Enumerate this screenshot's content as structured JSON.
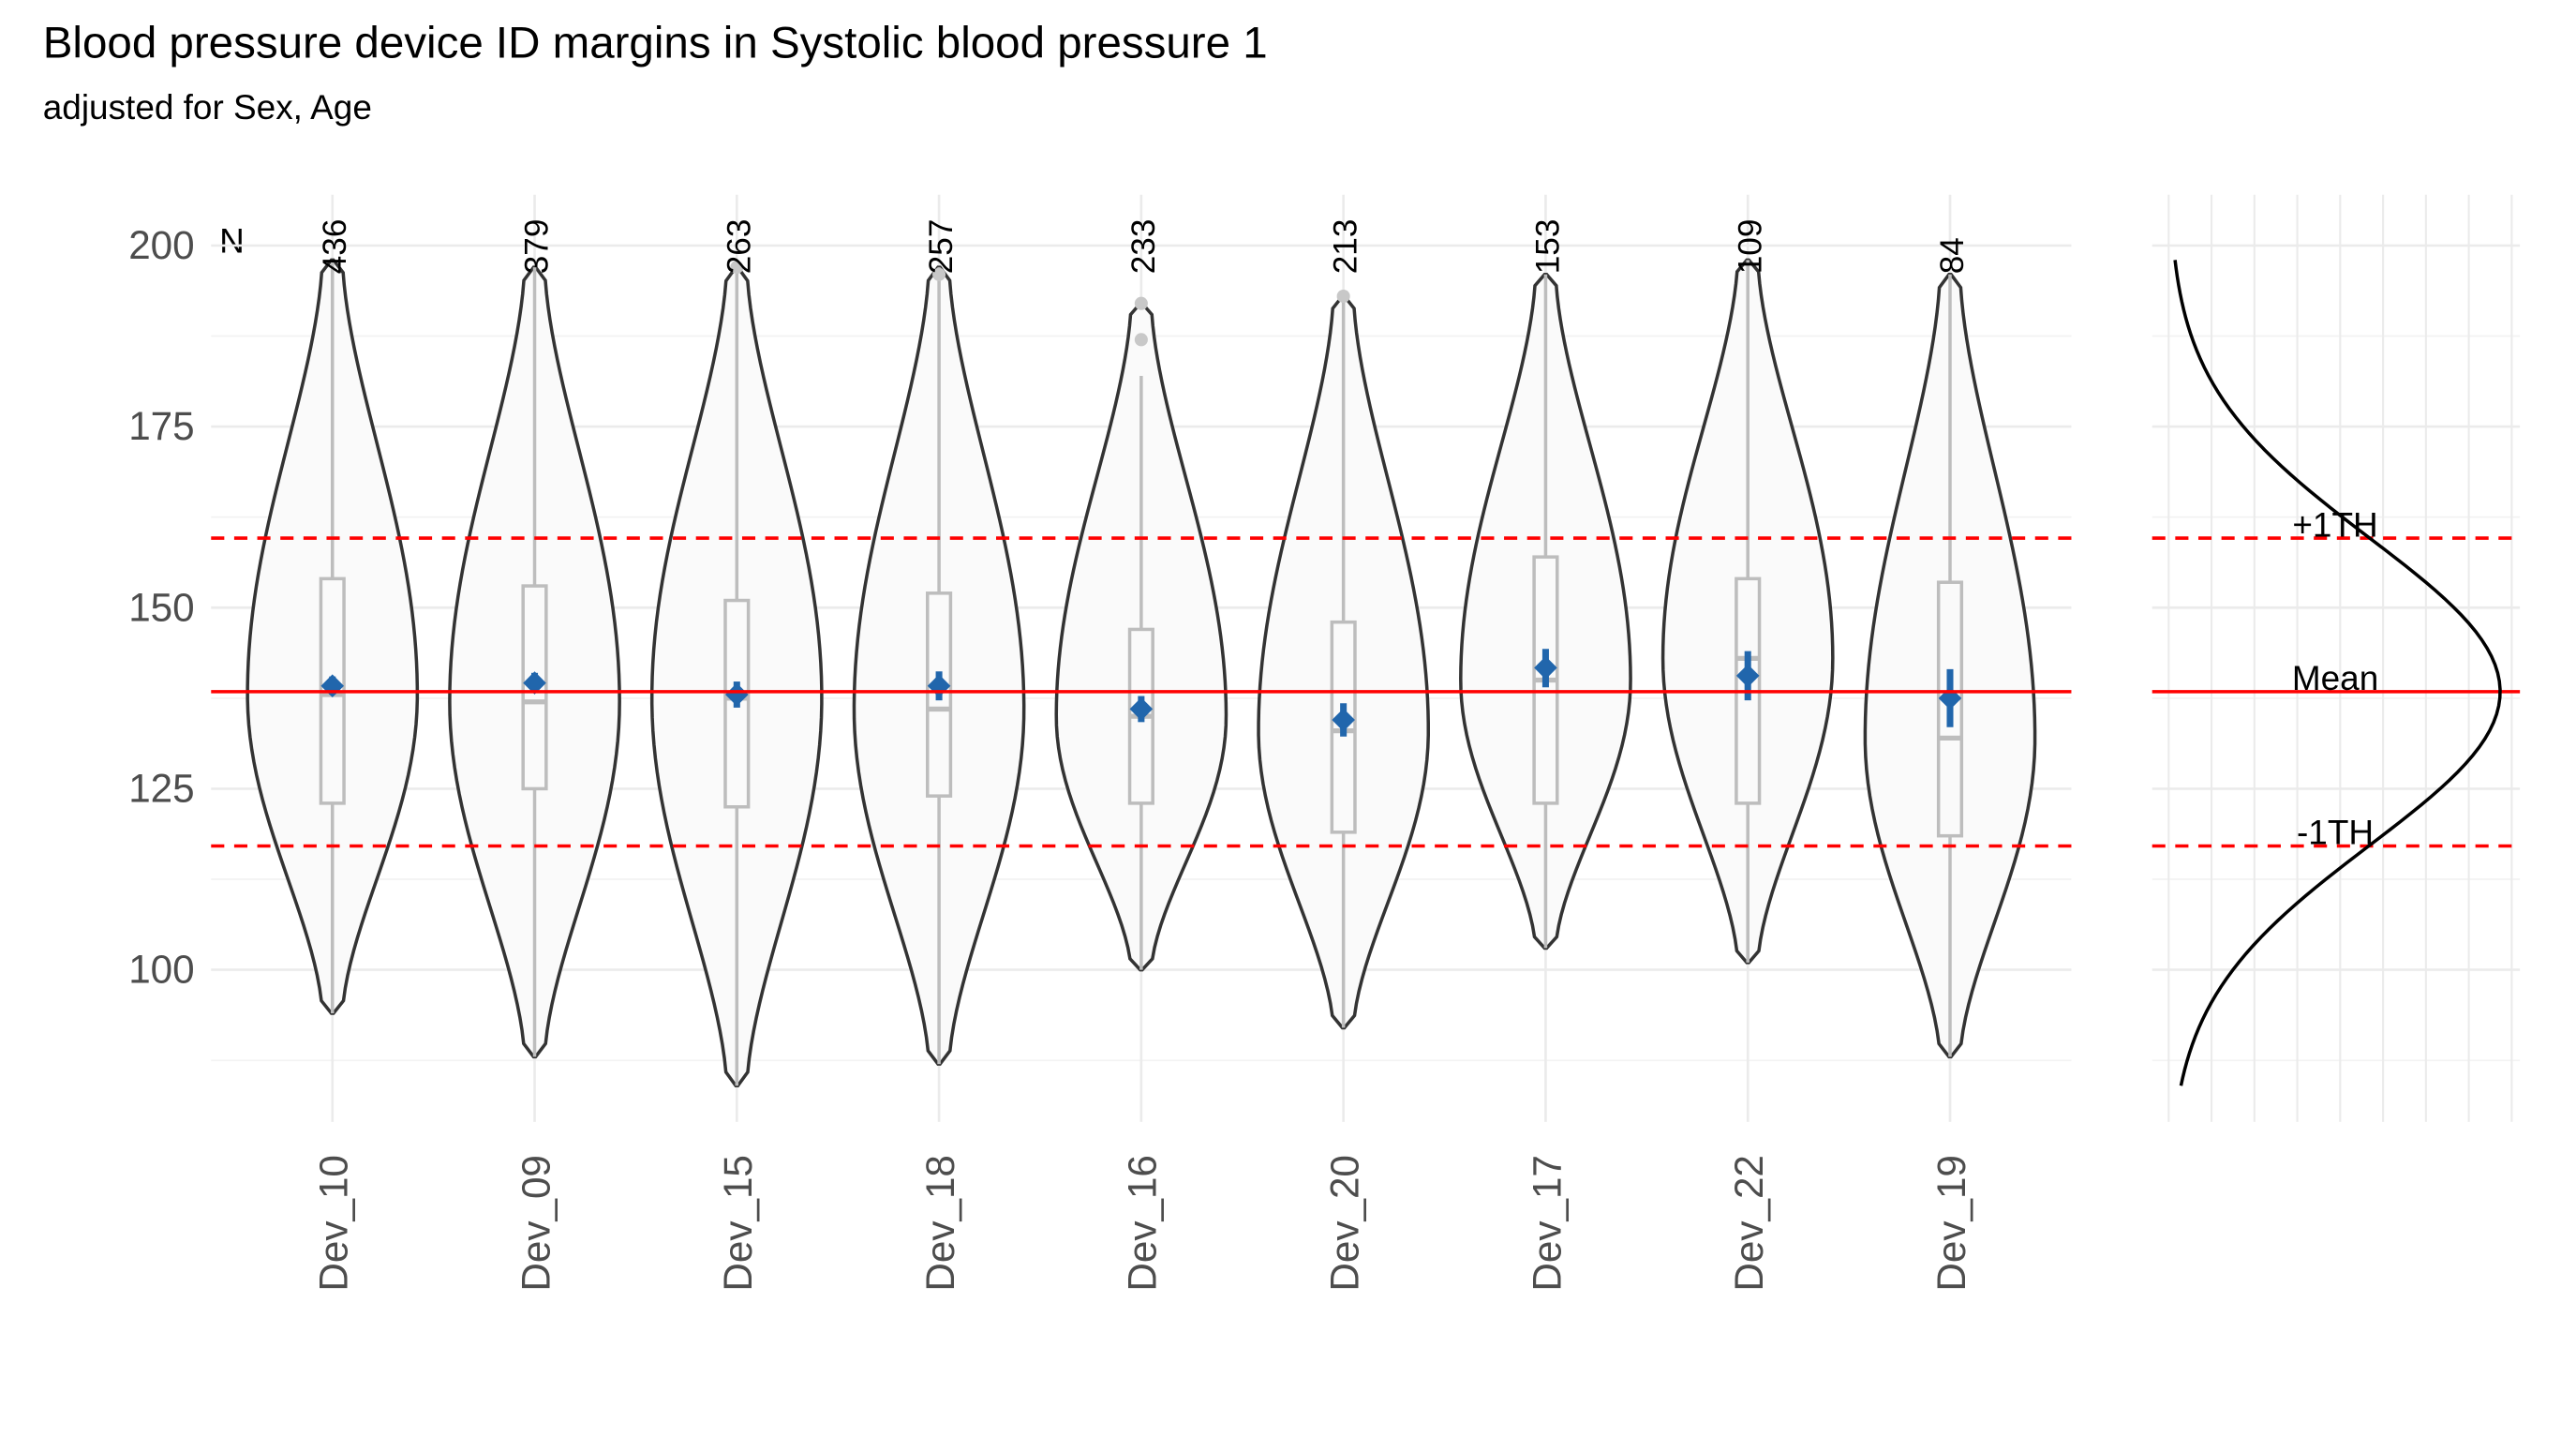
{
  "chart_data": {
    "type": "violin",
    "title": "Blood pressure device ID margins in Systolic blood pressure 1",
    "subtitle": "adjusted for Sex, Age",
    "n_label": "N",
    "categories": [
      "Dev_10",
      "Dev_09",
      "Dev_15",
      "Dev_18",
      "Dev_16",
      "Dev_20",
      "Dev_17",
      "Dev_22",
      "Dev_19"
    ],
    "n": [
      436,
      379,
      263,
      257,
      233,
      213,
      153,
      109,
      84
    ],
    "whisker_low": [
      94,
      88,
      84,
      87,
      100,
      92,
      103,
      101,
      88
    ],
    "q1": [
      123,
      125,
      122.5,
      124,
      123,
      119,
      123,
      123,
      118.5
    ],
    "median": [
      138,
      137,
      137.5,
      136,
      135,
      133,
      140,
      143,
      132
    ],
    "q3": [
      154,
      153,
      151,
      152,
      147,
      148,
      157,
      154,
      153.5
    ],
    "whisker_high": [
      198,
      197,
      197,
      197,
      182,
      193,
      196,
      198,
      196
    ],
    "outliers": [
      [],
      [],
      [
        197
      ],
      [
        196
      ],
      [
        187,
        192
      ],
      [
        193
      ],
      [],
      [],
      []
    ],
    "estimate": [
      139.2,
      139.6,
      138,
      139.2,
      136,
      134.5,
      141.7,
      140.6,
      137.5
    ],
    "ci_low": [
      138,
      138.2,
      136.2,
      137.2,
      134.2,
      132.2,
      139,
      137.2,
      133.5
    ],
    "ci_high": [
      140.5,
      141,
      139.8,
      141.2,
      137.8,
      136.8,
      144.3,
      144,
      141.5
    ],
    "reference_lines": [
      {
        "label": "Mean",
        "value": 138.4,
        "style": "solid"
      },
      {
        "label": "+1TH",
        "value": 159.6,
        "style": "dashed"
      },
      {
        "label": "-1TH",
        "value": 117.1,
        "style": "dashed"
      }
    ],
    "ylim": [
      79,
      207
    ],
    "yticks": [
      100,
      125,
      150,
      175,
      200
    ],
    "grid": true,
    "estimate_color": "#2166ac",
    "reference_color": "#ff0000"
  }
}
